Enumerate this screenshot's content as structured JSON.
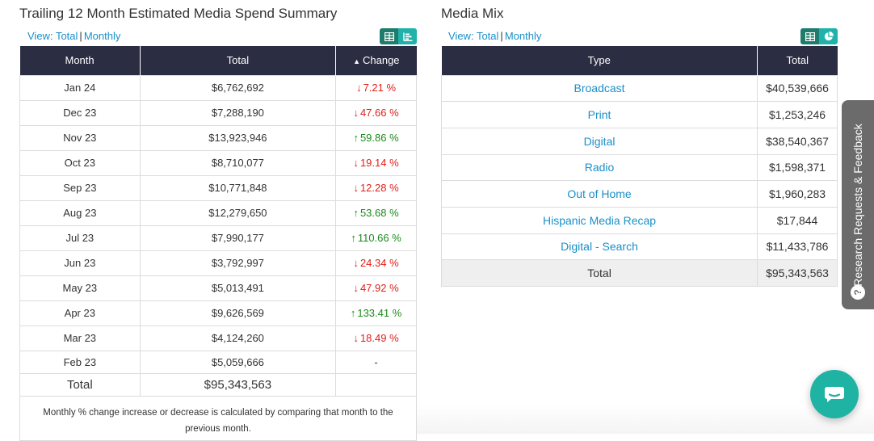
{
  "spend": {
    "title": "Trailing 12 Month Estimated Media Spend Summary",
    "view_label": "View:",
    "view_total": "Total",
    "view_sep": "|",
    "view_monthly": "Monthly",
    "headers": {
      "month": "Month",
      "total": "Total",
      "change": "Change"
    },
    "rows": [
      {
        "month": "Jan 24",
        "total": "$6,762,692",
        "change": "7.21 %",
        "dir": "down"
      },
      {
        "month": "Dec 23",
        "total": "$7,288,190",
        "change": "47.66 %",
        "dir": "down"
      },
      {
        "month": "Nov 23",
        "total": "$13,923,946",
        "change": "59.86 %",
        "dir": "up"
      },
      {
        "month": "Oct 23",
        "total": "$8,710,077",
        "change": "19.14 %",
        "dir": "down"
      },
      {
        "month": "Sep 23",
        "total": "$10,771,848",
        "change": "12.28 %",
        "dir": "down"
      },
      {
        "month": "Aug 23",
        "total": "$12,279,650",
        "change": "53.68 %",
        "dir": "up"
      },
      {
        "month": "Jul 23",
        "total": "$7,990,177",
        "change": "110.66 %",
        "dir": "up"
      },
      {
        "month": "Jun 23",
        "total": "$3,792,997",
        "change": "24.34 %",
        "dir": "down"
      },
      {
        "month": "May 23",
        "total": "$5,013,491",
        "change": "47.92 %",
        "dir": "down"
      },
      {
        "month": "Apr 23",
        "total": "$9,626,569",
        "change": "133.41 %",
        "dir": "up"
      },
      {
        "month": "Mar 23",
        "total": "$4,124,260",
        "change": "18.49 %",
        "dir": "down"
      }
    ],
    "last_row": {
      "month": "Feb 23",
      "total": "$5,059,666",
      "change": "-"
    },
    "total_row": {
      "label": "Total",
      "total": "$95,343,563"
    },
    "footnote": "Monthly % change increase or decrease is calculated by comparing that month to the previous month."
  },
  "mix": {
    "title": "Media Mix",
    "view_label": "View:",
    "view_total": "Total",
    "view_sep": "|",
    "view_monthly": "Monthly",
    "headers": {
      "type": "Type",
      "total": "Total"
    },
    "rows": [
      {
        "type": "Broadcast",
        "total": "$40,539,666"
      },
      {
        "type": "Print",
        "total": "$1,253,246"
      },
      {
        "type": "Digital",
        "total": "$38,540,367"
      },
      {
        "type": "Radio",
        "total": "$1,598,371"
      },
      {
        "type": "Out of Home",
        "total": "$1,960,283"
      },
      {
        "type": "Hispanic Media Recap",
        "total": "$17,844"
      },
      {
        "type": "Digital - Search",
        "total": "$11,433,786"
      }
    ],
    "total_row": {
      "label": "Total",
      "total": "$95,343,563"
    }
  },
  "feedback": {
    "label": "Research Requests & Feedback",
    "icon": "question-icon"
  },
  "chat": {
    "icon": "chat-icon"
  },
  "colors": {
    "header_bg": "#2b2d42",
    "link": "#1a8fc9",
    "down": "#e0201b",
    "up": "#1a8a1a",
    "accent": "#20b2aa"
  }
}
